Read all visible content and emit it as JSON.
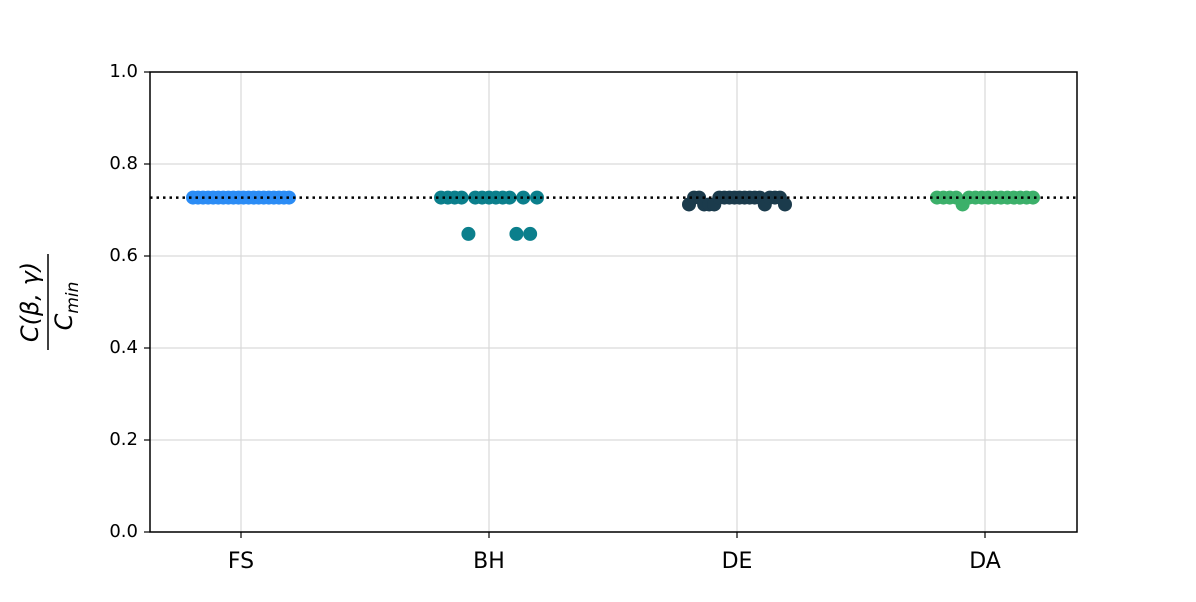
{
  "chart_data": {
    "type": "strip",
    "ylabel": {
      "numerator": "C(β, γ)",
      "denominator": "C",
      "denominator_sub": "min"
    },
    "categories": [
      "FS",
      "BH",
      "DE",
      "DA"
    ],
    "series": [
      {
        "color": "#2b8cf5",
        "values": [
          0.727,
          0.727,
          0.727,
          0.727,
          0.727,
          0.727,
          0.727,
          0.727,
          0.727,
          0.727,
          0.727,
          0.727,
          0.727,
          0.727,
          0.727,
          0.727,
          0.727,
          0.727,
          0.727,
          0.727
        ]
      },
      {
        "color": "#0b7f8c",
        "values": [
          0.727,
          0.727,
          0.727,
          0.727,
          0.648,
          0.727,
          0.727,
          0.648,
          0.648,
          0.727,
          0.727,
          0.727,
          0.727,
          0.727,
          0.727
        ]
      },
      {
        "color": "#1b3b4c",
        "values": [
          0.712,
          0.727,
          0.727,
          0.727,
          0.727,
          0.712,
          0.727,
          0.727,
          0.727,
          0.712,
          0.727,
          0.727,
          0.712,
          0.727,
          0.727,
          0.712,
          0.727,
          0.712,
          0.727,
          0.727
        ]
      },
      {
        "color": "#3cb06a",
        "values": [
          0.727,
          0.727,
          0.727,
          0.727,
          0.727,
          0.727,
          0.727,
          0.727,
          0.727,
          0.727,
          0.727,
          0.727,
          0.712,
          0.727,
          0.727,
          0.727
        ]
      }
    ],
    "reference_line": {
      "value": 0.727,
      "style": "dotted",
      "color": "#000000"
    },
    "ylim": [
      0,
      1
    ],
    "yticks": [
      {
        "value": 0,
        "label": "0.0"
      },
      {
        "value": 0.2,
        "label": "0.2"
      },
      {
        "value": 0.4,
        "label": "0.4"
      },
      {
        "value": 0.6,
        "label": "0.6"
      },
      {
        "value": 0.8,
        "label": "0.8"
      },
      {
        "value": 1,
        "label": "1.0"
      }
    ],
    "grid": true
  }
}
